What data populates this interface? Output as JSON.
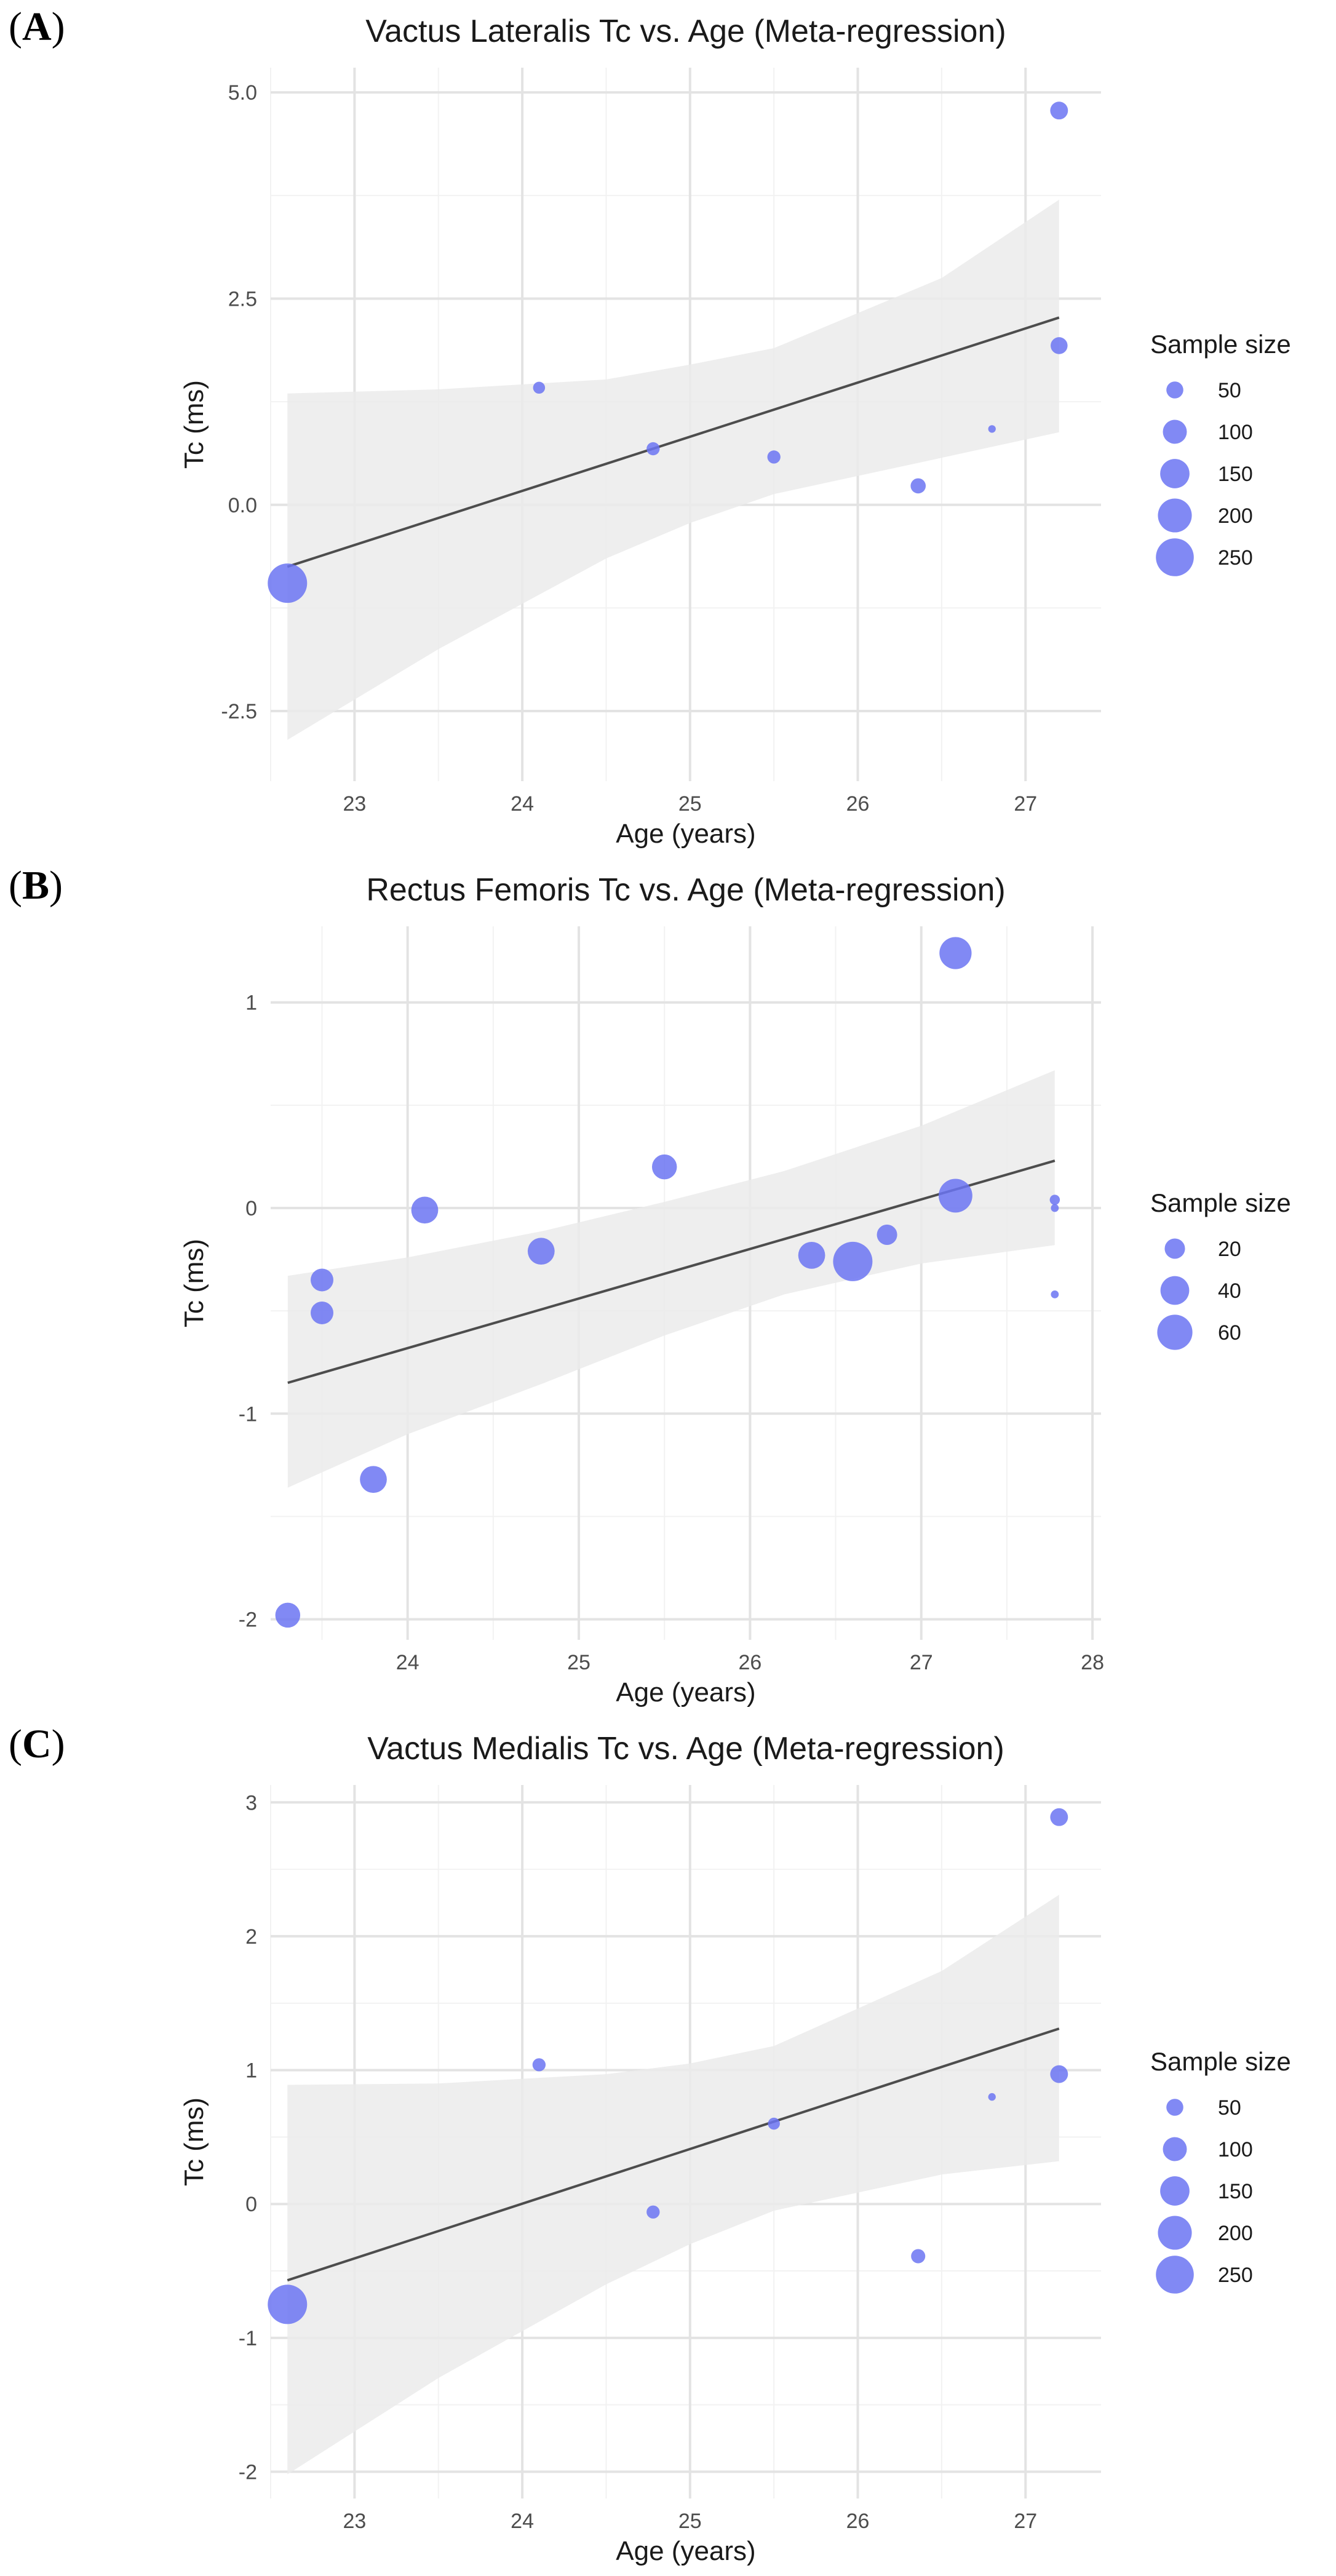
{
  "chart_data": [
    {
      "panel_label": "A",
      "type": "scatter",
      "title": "Vactus Lateralis Tc vs. Age (Meta-regression)",
      "xlabel": "Age (years)",
      "ylabel": "Tc (ms)",
      "xlim": [
        22.5,
        27.45
      ],
      "ylim": [
        -3.35,
        5.3
      ],
      "x_ticks": [
        23,
        24,
        25,
        26,
        27
      ],
      "y_ticks": [
        -2.5,
        0.0,
        2.5,
        5.0
      ],
      "y_tick_labels": [
        "-2.5",
        "0.0",
        "2.5",
        "5.0"
      ],
      "grid": true,
      "points": [
        {
          "x": 22.6,
          "y": -0.95,
          "n": 270
        },
        {
          "x": 24.1,
          "y": 1.42,
          "n": 25
        },
        {
          "x": 24.78,
          "y": 0.68,
          "n": 30
        },
        {
          "x": 25.5,
          "y": 0.58,
          "n": 30
        },
        {
          "x": 26.36,
          "y": 0.23,
          "n": 40
        },
        {
          "x": 26.8,
          "y": 0.92,
          "n": 10
        },
        {
          "x": 27.2,
          "y": 1.93,
          "n": 50
        },
        {
          "x": 27.2,
          "y": 4.78,
          "n": 55
        }
      ],
      "fit_line": {
        "x": [
          22.6,
          27.2
        ],
        "y": [
          -0.75,
          2.27
        ]
      },
      "ci_band": {
        "x": [
          22.6,
          23.5,
          24.5,
          25.0,
          25.5,
          26.5,
          27.2
        ],
        "lower": [
          -2.85,
          -1.75,
          -0.65,
          -0.22,
          0.13,
          0.57,
          0.88
        ],
        "upper": [
          1.35,
          1.4,
          1.52,
          1.7,
          1.9,
          2.75,
          3.7
        ]
      },
      "legend": {
        "title": "Sample size",
        "position": "right",
        "entries": [
          {
            "label": "50",
            "n": 50
          },
          {
            "label": "100",
            "n": 100
          },
          {
            "label": "150",
            "n": 150
          },
          {
            "label": "200",
            "n": 200
          },
          {
            "label": "250",
            "n": 250
          }
        ]
      },
      "size_max_n": 270,
      "point_color": "#6b74f2",
      "band_color": "#ebebeb",
      "line_color": "#4d4d4d"
    },
    {
      "panel_label": "B",
      "type": "scatter",
      "title": "Rectus Femoris Tc vs. Age (Meta-regression)",
      "xlabel": "Age (years)",
      "ylabel": "Tc (ms)",
      "xlim": [
        23.2,
        28.05
      ],
      "ylim": [
        -2.1,
        1.37
      ],
      "x_ticks": [
        24,
        25,
        26,
        27,
        28
      ],
      "y_ticks": [
        -2,
        -1,
        0,
        1
      ],
      "y_tick_labels": [
        "-2",
        "-1",
        "0",
        "1"
      ],
      "grid": true,
      "points": [
        {
          "x": 23.3,
          "y": -1.98,
          "n": 30
        },
        {
          "x": 23.5,
          "y": -0.35,
          "n": 25
        },
        {
          "x": 23.5,
          "y": -0.51,
          "n": 25
        },
        {
          "x": 23.8,
          "y": -1.32,
          "n": 35
        },
        {
          "x": 24.1,
          "y": -0.01,
          "n": 35
        },
        {
          "x": 24.78,
          "y": -0.21,
          "n": 35
        },
        {
          "x": 25.5,
          "y": 0.2,
          "n": 30
        },
        {
          "x": 26.36,
          "y": -0.23,
          "n": 35
        },
        {
          "x": 26.6,
          "y": -0.26,
          "n": 75
        },
        {
          "x": 26.8,
          "y": -0.13,
          "n": 20
        },
        {
          "x": 27.2,
          "y": 1.24,
          "n": 50
        },
        {
          "x": 27.2,
          "y": 0.06,
          "n": 55
        },
        {
          "x": 27.78,
          "y": 0.04,
          "n": 5
        },
        {
          "x": 27.78,
          "y": 0.0,
          "n": 3
        },
        {
          "x": 27.78,
          "y": -0.42,
          "n": 3
        }
      ],
      "fit_line": {
        "x": [
          23.3,
          27.78
        ],
        "y": [
          -0.85,
          0.23
        ]
      },
      "ci_band": {
        "x": [
          23.3,
          24.0,
          24.8,
          25.5,
          26.2,
          27.0,
          27.78
        ],
        "lower": [
          -1.36,
          -1.1,
          -0.85,
          -0.62,
          -0.42,
          -0.27,
          -0.18
        ],
        "upper": [
          -0.33,
          -0.24,
          -0.11,
          0.03,
          0.18,
          0.4,
          0.67
        ]
      },
      "legend": {
        "title": "Sample size",
        "position": "right",
        "entries": [
          {
            "label": "20",
            "n": 20
          },
          {
            "label": "40",
            "n": 40
          },
          {
            "label": "60",
            "n": 60
          }
        ]
      },
      "size_max_n": 75,
      "point_color": "#6b74f2",
      "band_color": "#ebebeb",
      "line_color": "#4d4d4d"
    },
    {
      "panel_label": "C",
      "type": "scatter",
      "title": "Vactus Medialis Tc vs. Age (Meta-regression)",
      "xlabel": "Age (years)",
      "ylabel": "Tc (ms)",
      "xlim": [
        22.5,
        27.45
      ],
      "ylim": [
        -2.2,
        3.13
      ],
      "x_ticks": [
        23,
        24,
        25,
        26,
        27
      ],
      "y_ticks": [
        -2,
        -1,
        0,
        1,
        2,
        3
      ],
      "y_tick_labels": [
        "-2",
        "-1",
        "0",
        "1",
        "2",
        "3"
      ],
      "grid": true,
      "points": [
        {
          "x": 22.6,
          "y": -0.75,
          "n": 270
        },
        {
          "x": 24.1,
          "y": 1.04,
          "n": 30
        },
        {
          "x": 24.78,
          "y": -0.06,
          "n": 30
        },
        {
          "x": 25.5,
          "y": 0.6,
          "n": 25
        },
        {
          "x": 26.36,
          "y": -0.39,
          "n": 35
        },
        {
          "x": 26.8,
          "y": 0.8,
          "n": 10
        },
        {
          "x": 27.2,
          "y": 0.97,
          "n": 55
        },
        {
          "x": 27.2,
          "y": 2.89,
          "n": 55
        }
      ],
      "fit_line": {
        "x": [
          22.6,
          27.2
        ],
        "y": [
          -0.57,
          1.31
        ]
      },
      "ci_band": {
        "x": [
          22.6,
          23.5,
          24.5,
          25.0,
          25.5,
          26.5,
          27.2
        ],
        "lower": [
          -2.02,
          -1.3,
          -0.6,
          -0.3,
          -0.05,
          0.22,
          0.32
        ],
        "upper": [
          0.89,
          0.9,
          0.97,
          1.05,
          1.18,
          1.74,
          2.31
        ]
      },
      "legend": {
        "title": "Sample size",
        "position": "right",
        "entries": [
          {
            "label": "50",
            "n": 50
          },
          {
            "label": "100",
            "n": 100
          },
          {
            "label": "150",
            "n": 150
          },
          {
            "label": "200",
            "n": 200
          },
          {
            "label": "250",
            "n": 250
          }
        ]
      },
      "size_max_n": 270,
      "point_color": "#6b74f2",
      "band_color": "#ebebeb",
      "line_color": "#4d4d4d"
    }
  ]
}
